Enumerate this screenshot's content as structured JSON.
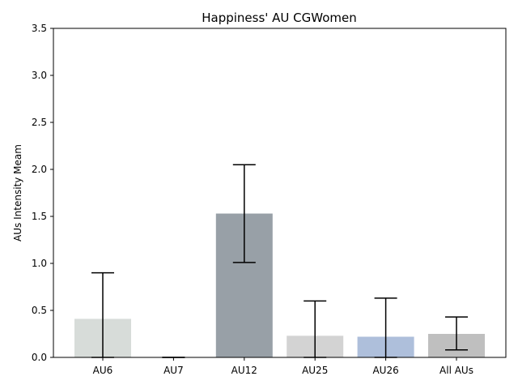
{
  "chart_data": {
    "type": "bar",
    "title": "Happiness' AU CGWomen",
    "xlabel": "",
    "ylabel": "AUs Intensity Meam",
    "categories": [
      "AU6",
      "AU7",
      "AU12",
      "AU25",
      "AU26",
      "All AUs"
    ],
    "values": [
      0.41,
      0.0,
      1.53,
      0.23,
      0.22,
      0.25
    ],
    "errors": [
      {
        "low": 0.0,
        "high": 0.9
      },
      {
        "low": 0.0,
        "high": 0.0
      },
      {
        "low": 1.01,
        "high": 2.05
      },
      {
        "low": 0.0,
        "high": 0.6
      },
      {
        "low": 0.0,
        "high": 0.63
      },
      {
        "low": 0.08,
        "high": 0.43
      }
    ],
    "bar_colors": [
      "#d7dcd9",
      "#d7dcd9",
      "#98a0a7",
      "#d3d3d3",
      "#aebfdb",
      "#bfbfbf"
    ],
    "ylim": [
      0,
      3.5
    ],
    "yticks": [
      "0.0",
      "0.5",
      "1.0",
      "1.5",
      "2.0",
      "2.5",
      "3.0",
      "3.5"
    ],
    "grid": false,
    "legend": "none"
  }
}
